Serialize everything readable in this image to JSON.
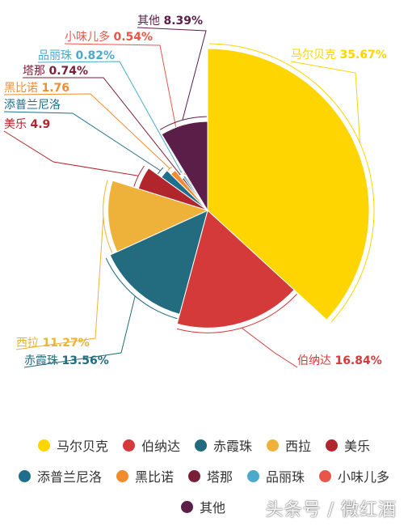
{
  "chart_data": {
    "type": "pie",
    "variant": "rose",
    "slices": [
      {
        "name": "马尔贝克",
        "value": 35.67,
        "label": "马尔贝克 35.67%",
        "color": "#FFD500"
      },
      {
        "name": "伯纳达",
        "value": 16.84,
        "label": "伯纳达 16.84%",
        "color": "#D43A3A"
      },
      {
        "name": "赤霞珠",
        "value": 13.56,
        "label": "赤霞珠 13.56%",
        "color": "#236B7E"
      },
      {
        "name": "西拉",
        "value": 11.27,
        "label": "西拉 11.27%",
        "color": "#EEB23A"
      },
      {
        "name": "美乐",
        "value": 4.9,
        "label": "美乐 4.9",
        "color": "#B1262C"
      },
      {
        "name": "添普兰尼洛",
        "value": 2.4,
        "label": "添普兰尼洛",
        "color": "#1F6E8C"
      },
      {
        "name": "黑比诺",
        "value": 1.76,
        "label": "黑比诺 1.76",
        "color": "#F08C2E"
      },
      {
        "name": "塔那",
        "value": 0.74,
        "label": "塔那 0.74%",
        "color": "#7A1F38"
      },
      {
        "name": "品丽珠",
        "value": 0.82,
        "label": "品丽珠 0.82%",
        "color": "#4BAACB"
      },
      {
        "name": "小味儿多",
        "value": 0.54,
        "label": "小味儿多 0.54%",
        "color": "#E8564A"
      },
      {
        "name": "其他",
        "value": 8.39,
        "label": "其他 8.39%",
        "color": "#5A1E48"
      }
    ],
    "legend_placement": "bottom"
  },
  "legend_rows": [
    [
      "马尔贝克",
      "伯纳达",
      "赤霞珠",
      "西拉",
      "美乐"
    ],
    [
      "添普兰尼洛",
      "黑比诺",
      "塔那",
      "品丽珠",
      "小味儿多"
    ],
    [
      "其他"
    ]
  ],
  "watermark": "头条号 / 微红酒"
}
